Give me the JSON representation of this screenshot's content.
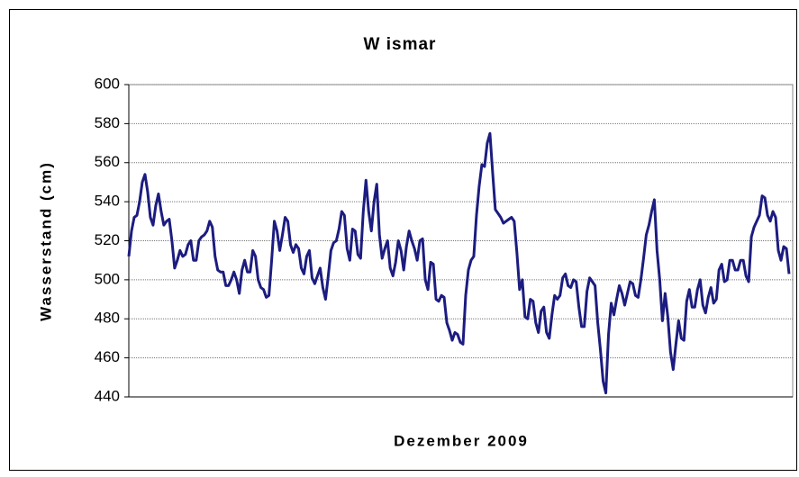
{
  "chart_data": {
    "type": "line",
    "title": "W ismar",
    "xlabel": "Dezember 2009",
    "ylabel": "Wasserstand (cm)",
    "ylim": [
      440,
      600
    ],
    "yticks": [
      440,
      460,
      480,
      500,
      520,
      540,
      560,
      580,
      600
    ],
    "grid": true,
    "color": "#1c1c80",
    "values": [
      512,
      525,
      532,
      533,
      540,
      550,
      554,
      545,
      532,
      528,
      538,
      544,
      535,
      528,
      530,
      531,
      520,
      506,
      510,
      515,
      512,
      513,
      518,
      520,
      510,
      510,
      520,
      522,
      523,
      525,
      530,
      527,
      512,
      505,
      504,
      504,
      497,
      497,
      500,
      504,
      500,
      493,
      505,
      510,
      504,
      504,
      515,
      512,
      500,
      496,
      495,
      491,
      492,
      510,
      530,
      525,
      515,
      523,
      532,
      530,
      518,
      514,
      518,
      516,
      506,
      503,
      512,
      515,
      501,
      498,
      502,
      506,
      496,
      490,
      502,
      515,
      519,
      520,
      526,
      535,
      533,
      516,
      510,
      526,
      525,
      513,
      511,
      535,
      551,
      535,
      525,
      540,
      549,
      523,
      511,
      516,
      520,
      506,
      502,
      509,
      520,
      515,
      505,
      517,
      525,
      520,
      516,
      510,
      520,
      521,
      500,
      495,
      509,
      508,
      490,
      489,
      492,
      491,
      478,
      474,
      469,
      473,
      472,
      468,
      467,
      492,
      505,
      510,
      512,
      533,
      548,
      559,
      558,
      570,
      575,
      555,
      536,
      534,
      532,
      529,
      530,
      531,
      532,
      530,
      514,
      495,
      500,
      481,
      480,
      490,
      489,
      478,
      473,
      484,
      486,
      473,
      470,
      482,
      492,
      490,
      492,
      501,
      503,
      497,
      496,
      500,
      499,
      486,
      476,
      476,
      494,
      501,
      499,
      497,
      478,
      464,
      448,
      442,
      472,
      488,
      482,
      490,
      497,
      493,
      487,
      493,
      499,
      498,
      492,
      491,
      500,
      511,
      523,
      528,
      535,
      541,
      515,
      500,
      479,
      493,
      481,
      463,
      454,
      467,
      479,
      470,
      469,
      489,
      495,
      486,
      486,
      495,
      500,
      487,
      483,
      491,
      496,
      488,
      490,
      505,
      508,
      499,
      500,
      510,
      510,
      505,
      505,
      510,
      510,
      502,
      499,
      522,
      527,
      530,
      533,
      543,
      542,
      533,
      530,
      535,
      532,
      515,
      510,
      517,
      516,
      503
    ]
  }
}
